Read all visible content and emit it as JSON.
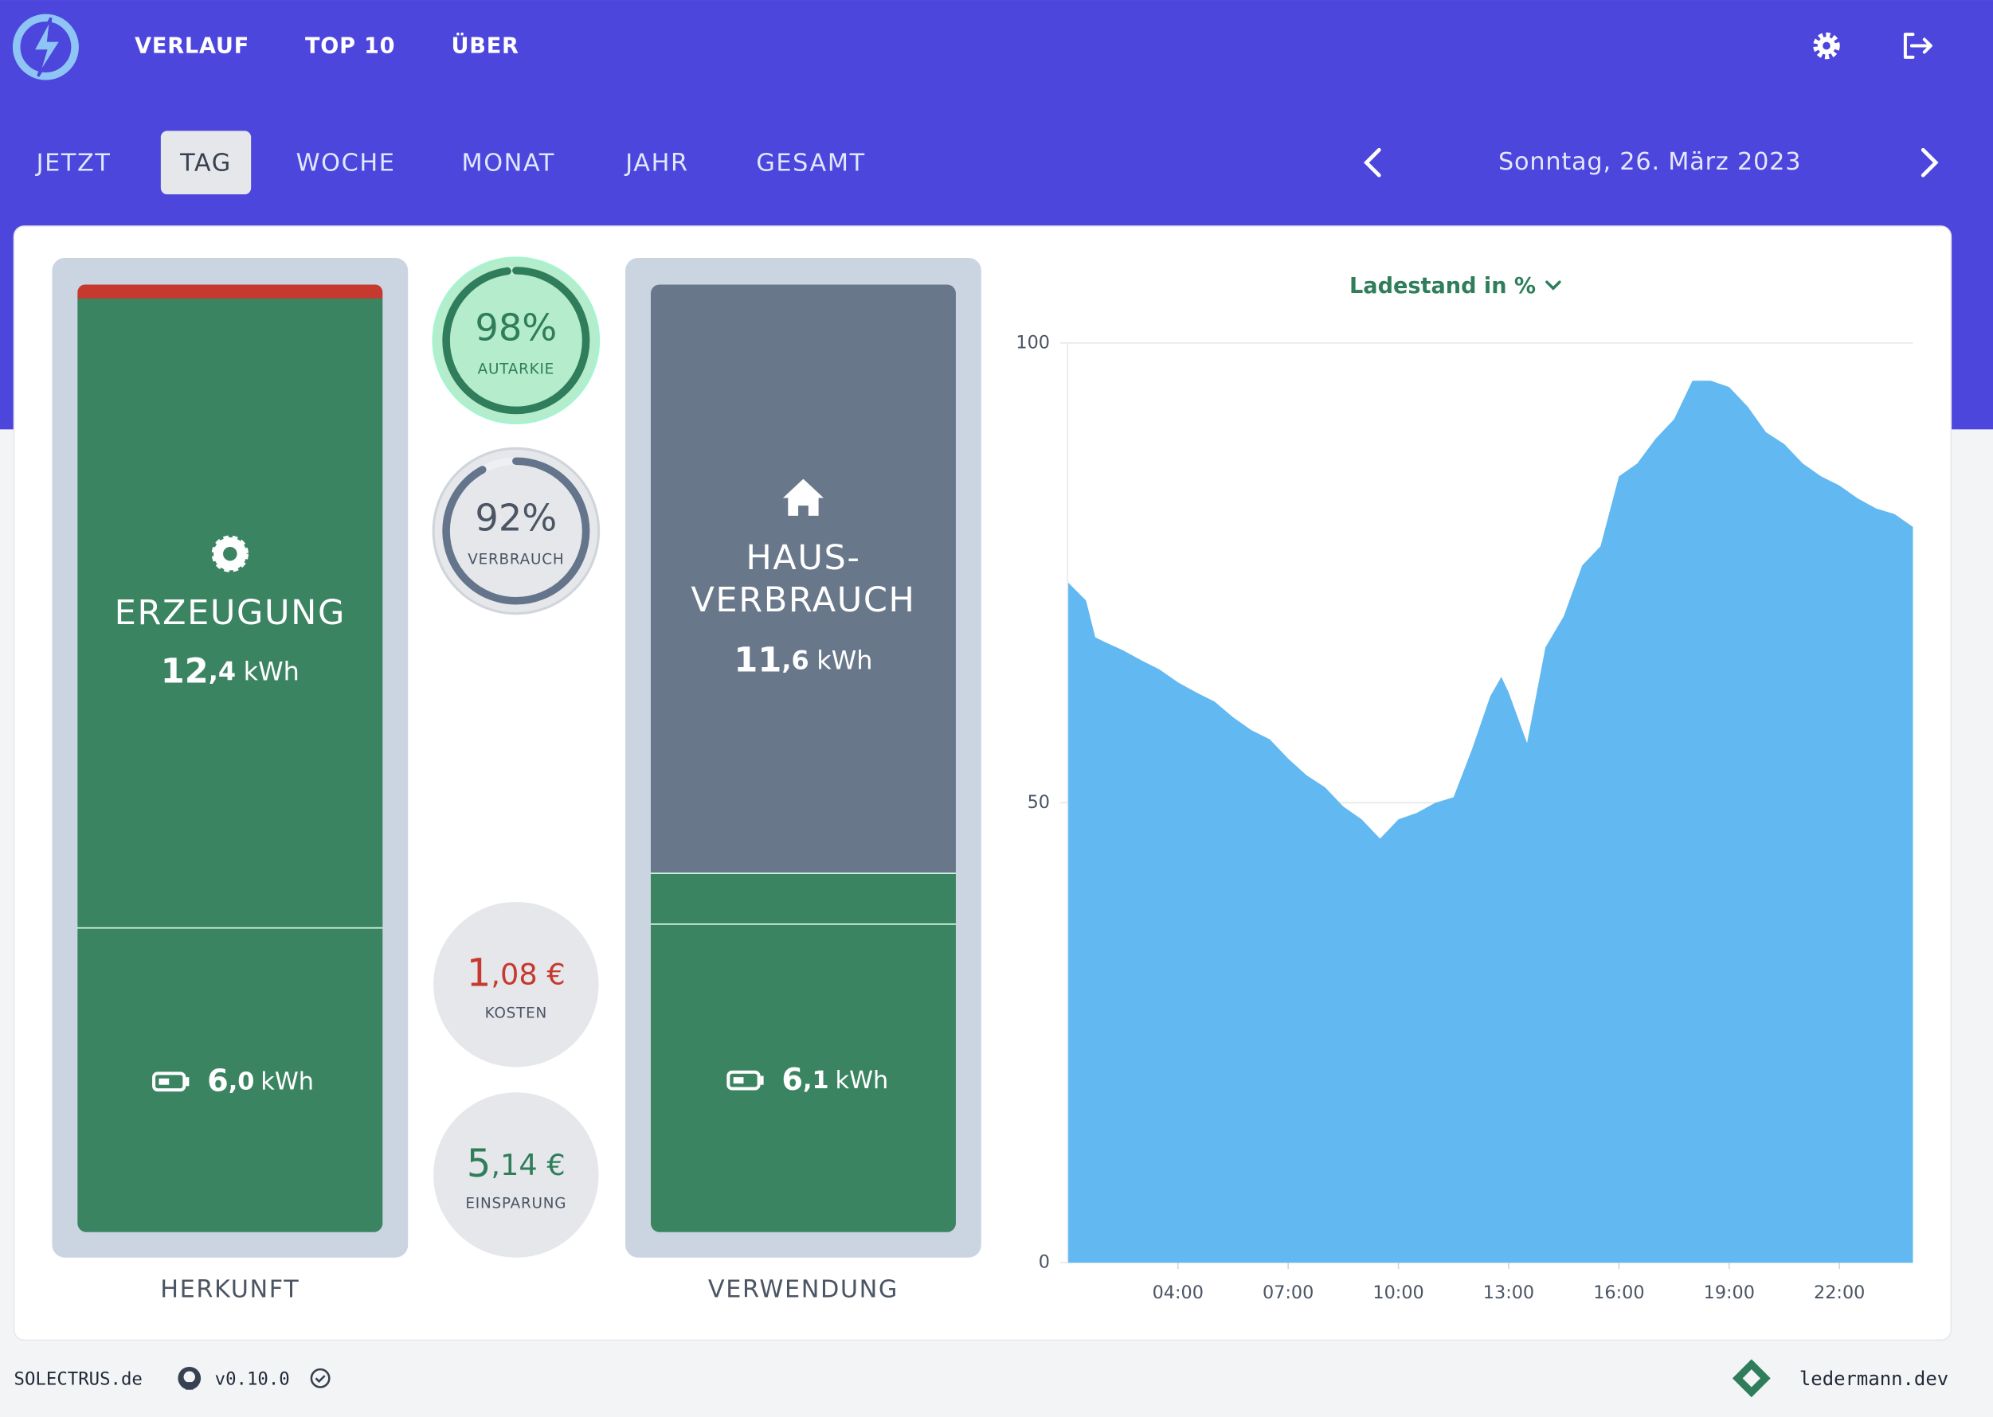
{
  "nav": {
    "links": [
      "VERLAUF",
      "TOP 10",
      "ÜBER"
    ]
  },
  "tabs": {
    "items": [
      "JETZT",
      "TAG",
      "WOCHE",
      "MONAT",
      "JAHR",
      "GESAMT"
    ],
    "active": 1
  },
  "date": "Sonntag, 26. März 2023",
  "herkunft": {
    "label": "HERKUNFT",
    "erzeugung": {
      "title": "ERZEUGUNG",
      "integer": "12",
      "decimal": ",4",
      "unit": "kWh"
    },
    "battery": {
      "integer": "6",
      "decimal": ",0",
      "unit": "kWh"
    }
  },
  "verwendung": {
    "label": "VERWENDUNG",
    "hausverbrauch": {
      "title_line1": "HAUS-",
      "title_line2": "VERBRAUCH",
      "integer": "11",
      "decimal": ",6",
      "unit": "kWh"
    },
    "battery": {
      "integer": "6",
      "decimal": ",1",
      "unit": "kWh"
    }
  },
  "gauges": [
    {
      "value": 98,
      "value_label": "98%",
      "label": "AUTARKIE"
    },
    {
      "value": 92,
      "value_label": "92%",
      "label": "VERBRAUCH"
    }
  ],
  "costs": {
    "integer": "1",
    "decimal": ",08 €",
    "label": "KOSTEN"
  },
  "savings": {
    "integer": "5",
    "decimal": ",14 €",
    "label": "EINSPARUNG"
  },
  "chart": {
    "type": "area",
    "title": "Ladestand in %",
    "color": "#62b8f1",
    "grid": true,
    "x": [
      1,
      1.5,
      1.75,
      2,
      2.5,
      3,
      3.5,
      4,
      4.5,
      5,
      5.5,
      6,
      6.5,
      7,
      7.5,
      8,
      8.5,
      9,
      9.5,
      10,
      10.5,
      11,
      11.5,
      12,
      12.5,
      12.8,
      13,
      13.5,
      14,
      14.5,
      15,
      15.5,
      16,
      16.5,
      17,
      17.5,
      18,
      18.5,
      19,
      19.5,
      20,
      20.5,
      21,
      21.5,
      22,
      22.5,
      23,
      23.5,
      24
    ],
    "values": [
      74,
      72,
      68,
      67.5,
      66.6,
      65.5,
      64.5,
      63.1,
      62,
      61,
      59.3,
      57.9,
      56.9,
      54.8,
      53,
      51.7,
      49.6,
      48.2,
      46.1,
      48.2,
      48.9,
      50,
      50.6,
      55.8,
      61.6,
      63.7,
      62,
      56.5,
      66.9,
      70.3,
      75.8,
      77.9,
      85.5,
      86.9,
      89.6,
      91.7,
      95.9,
      95.9,
      95.2,
      93.1,
      90.3,
      89,
      86.9,
      85.5,
      84.5,
      83.1,
      82,
      81.4,
      80
    ],
    "xlim": [
      1,
      24
    ],
    "ylim": [
      0,
      100
    ],
    "yticks": [
      0,
      50,
      100
    ],
    "xticks": [
      {
        "value": 4,
        "label": "04:00"
      },
      {
        "value": 7,
        "label": "07:00"
      },
      {
        "value": 10,
        "label": "10:00"
      },
      {
        "value": 13,
        "label": "13:00"
      },
      {
        "value": 16,
        "label": "16:00"
      },
      {
        "value": 19,
        "label": "19:00"
      },
      {
        "value": 22,
        "label": "22:00"
      }
    ]
  },
  "footer": {
    "brand": "SOLECTRUS.de",
    "version": "v0.10.0",
    "author": "ledermann.dev"
  }
}
